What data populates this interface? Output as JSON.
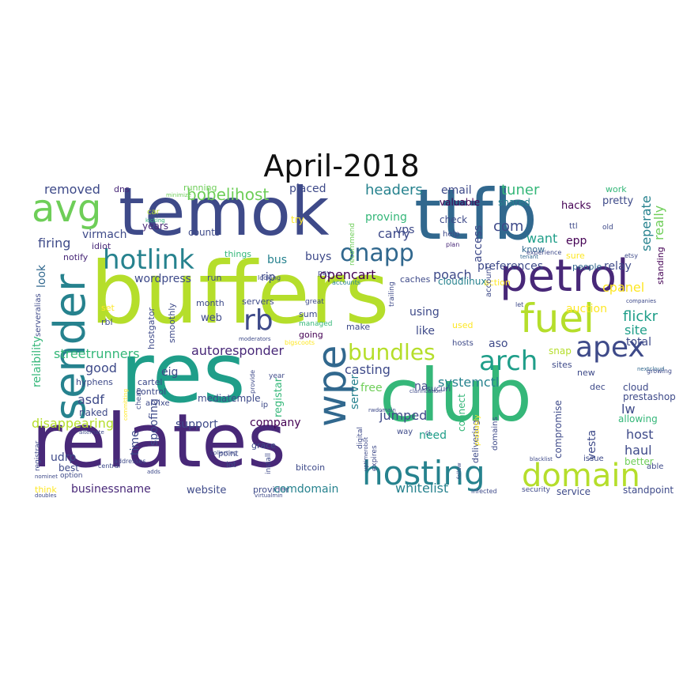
{
  "title": "April-2018",
  "palette": [
    "#440154",
    "#482878",
    "#3e4a89",
    "#31688e",
    "#26828e",
    "#1f9e89",
    "#35b779",
    "#6ece58",
    "#b5de2b",
    "#fde725"
  ],
  "words": [
    {
      "text": "buffers",
      "size": 108,
      "color": "#b5de2b"
    },
    {
      "text": "relates",
      "size": 94,
      "color": "#482878"
    },
    {
      "text": "club",
      "size": 92,
      "color": "#35b779"
    },
    {
      "text": "res",
      "size": 104,
      "color": "#1f9e89"
    },
    {
      "text": "ttfb",
      "size": 88,
      "color": "#31688e"
    },
    {
      "text": "temok",
      "size": 84,
      "color": "#3e4a89"
    },
    {
      "text": "petrol",
      "size": 56,
      "color": "#482878"
    },
    {
      "text": "sender",
      "size": 54,
      "color": "#26828e"
    },
    {
      "text": "fuel",
      "size": 50,
      "color": "#b5de2b"
    },
    {
      "text": "wpe",
      "size": 50,
      "color": "#31688e"
    },
    {
      "text": "hosting",
      "size": 42,
      "color": "#26828e"
    },
    {
      "text": "domain",
      "size": 40,
      "color": "#b5de2b"
    },
    {
      "text": "avg",
      "size": 48,
      "color": "#6ece58"
    },
    {
      "text": "hotlink",
      "size": 34,
      "color": "#26828e"
    },
    {
      "text": "apex",
      "size": 36,
      "color": "#3e4a89"
    },
    {
      "text": "arch",
      "size": 34,
      "color": "#1f9e89"
    },
    {
      "text": "rb",
      "size": 36,
      "color": "#3e4a89"
    },
    {
      "text": "onapp",
      "size": 30,
      "color": "#31688e"
    },
    {
      "text": "bundles",
      "size": 28,
      "color": "#b5de2b"
    },
    {
      "text": "bobelihost",
      "size": 20,
      "color": "#6ece58"
    },
    {
      "text": "removed",
      "size": 16,
      "color": "#3e4a89"
    },
    {
      "text": "dns",
      "size": 11,
      "color": "#482878"
    },
    {
      "text": "running",
      "size": 11,
      "color": "#6ece58"
    },
    {
      "text": "minimize",
      "size": 7,
      "color": "#6ece58"
    },
    {
      "text": "placed",
      "size": 14,
      "color": "#3e4a89"
    },
    {
      "text": "headers",
      "size": 18,
      "color": "#26828e"
    },
    {
      "text": "email",
      "size": 14,
      "color": "#3e4a89"
    },
    {
      "text": "valuable",
      "size": 12,
      "color": "#440154"
    },
    {
      "text": "tuner",
      "size": 18,
      "color": "#35b779"
    },
    {
      "text": "shared",
      "size": 12,
      "color": "#26828e"
    },
    {
      "text": "work",
      "size": 11,
      "color": "#35b779"
    },
    {
      "text": "pretty",
      "size": 13,
      "color": "#3e4a89"
    },
    {
      "text": "seperate",
      "size": 16,
      "color": "#26828e"
    },
    {
      "text": "really",
      "size": 16,
      "color": "#6ece58"
    },
    {
      "text": "hacks",
      "size": 13,
      "color": "#440154"
    },
    {
      "text": "car",
      "size": 10,
      "color": "#b5de2b"
    },
    {
      "text": "kicking",
      "size": 7,
      "color": "#35b779"
    },
    {
      "text": "years",
      "size": 12,
      "color": "#482878"
    },
    {
      "text": "virmach",
      "size": 14,
      "color": "#3e4a89"
    },
    {
      "text": "try",
      "size": 12,
      "color": "#fde725"
    },
    {
      "text": "recommend",
      "size": 9,
      "color": "#6ece58"
    },
    {
      "text": "proving",
      "size": 14,
      "color": "#35b779"
    },
    {
      "text": "vps",
      "size": 14,
      "color": "#3e4a89"
    },
    {
      "text": "check",
      "size": 12,
      "color": "#3e4a89"
    },
    {
      "text": "help",
      "size": 10,
      "color": "#3e4a89"
    },
    {
      "text": "plan",
      "size": 8,
      "color": "#482878"
    },
    {
      "text": "ttl",
      "size": 10,
      "color": "#3e4a89"
    },
    {
      "text": "old",
      "size": 9,
      "color": "#3e4a89"
    },
    {
      "text": "epp",
      "size": 14,
      "color": "#440154"
    },
    {
      "text": "counts",
      "size": 12,
      "color": "#3e4a89"
    },
    {
      "text": "carry",
      "size": 16,
      "color": "#3e4a89"
    },
    {
      "text": "com",
      "size": 18,
      "color": "#3e4a89"
    },
    {
      "text": "want",
      "size": 16,
      "color": "#1f9e89"
    },
    {
      "text": "access",
      "size": 14,
      "color": "#3e4a89"
    },
    {
      "text": "firing",
      "size": 16,
      "color": "#3e4a89"
    },
    {
      "text": "idiot",
      "size": 11,
      "color": "#482878"
    },
    {
      "text": "notify",
      "size": 11,
      "color": "#482878"
    },
    {
      "text": "things",
      "size": 11,
      "color": "#35b779"
    },
    {
      "text": "bus",
      "size": 14,
      "color": "#26828e"
    },
    {
      "text": "buys",
      "size": 14,
      "color": "#3e4a89"
    },
    {
      "text": "know",
      "size": 11,
      "color": "#31688e"
    },
    {
      "text": "tenant",
      "size": 7,
      "color": "#31688e"
    },
    {
      "text": "sure",
      "size": 11,
      "color": "#fde725"
    },
    {
      "text": "etsy",
      "size": 8,
      "color": "#3e4a89"
    },
    {
      "text": "look",
      "size": 14,
      "color": "#31688e"
    },
    {
      "text": "wordpress",
      "size": 14,
      "color": "#3e4a89"
    },
    {
      "text": "run",
      "size": 11,
      "color": "#3e4a89"
    },
    {
      "text": "rip",
      "size": 14,
      "color": "#3e4a89"
    },
    {
      "text": "opencart",
      "size": 16,
      "color": "#440154"
    },
    {
      "text": "poach",
      "size": 16,
      "color": "#3e4a89"
    },
    {
      "text": "preferences",
      "size": 14,
      "color": "#3e4a89"
    },
    {
      "text": "relay",
      "size": 14,
      "color": "#3e4a89"
    },
    {
      "text": "people",
      "size": 11,
      "color": "#31688e"
    },
    {
      "text": "standing",
      "size": 11,
      "color": "#440154"
    },
    {
      "text": "pay",
      "size": 9,
      "color": "#3e4a89"
    },
    {
      "text": "accounts",
      "size": 8,
      "color": "#26828e"
    },
    {
      "text": "caches",
      "size": 11,
      "color": "#3e4a89"
    },
    {
      "text": "cloudlinux",
      "size": 12,
      "color": "#26828e"
    },
    {
      "text": "cpanel",
      "size": 16,
      "color": "#fde725"
    },
    {
      "text": "month",
      "size": 11,
      "color": "#3e4a89"
    },
    {
      "text": "servers",
      "size": 11,
      "color": "#3e4a89"
    },
    {
      "text": "great",
      "size": 9,
      "color": "#3e4a89"
    },
    {
      "text": "managed",
      "size": 9,
      "color": "#35b779"
    },
    {
      "text": "trailing",
      "size": 9,
      "color": "#3e4a89"
    },
    {
      "text": "using",
      "size": 14,
      "color": "#3e4a89"
    },
    {
      "text": "let",
      "size": 8,
      "color": "#3e4a89"
    },
    {
      "text": "auction",
      "size": 14,
      "color": "#fde725"
    },
    {
      "text": "flickr",
      "size": 18,
      "color": "#1f9e89"
    },
    {
      "text": "set",
      "size": 11,
      "color": "#fde725"
    },
    {
      "text": "rbl",
      "size": 11,
      "color": "#3e4a89"
    },
    {
      "text": "serveralias",
      "size": 10,
      "color": "#3e4a89"
    },
    {
      "text": "hostgator",
      "size": 11,
      "color": "#3e4a89"
    },
    {
      "text": "smoothly",
      "size": 11,
      "color": "#3e4a89"
    },
    {
      "text": "web",
      "size": 13,
      "color": "#3e4a89"
    },
    {
      "text": "sum",
      "size": 11,
      "color": "#3e4a89"
    },
    {
      "text": "going",
      "size": 11,
      "color": "#440154"
    },
    {
      "text": "make",
      "size": 11,
      "color": "#3e4a89"
    },
    {
      "text": "used",
      "size": 11,
      "color": "#fde725"
    },
    {
      "text": "site",
      "size": 16,
      "color": "#1f9e89"
    },
    {
      "text": "total",
      "size": 14,
      "color": "#3e4a89"
    },
    {
      "text": "relaibility",
      "size": 14,
      "color": "#35b779"
    },
    {
      "text": "streetrunners",
      "size": 16,
      "color": "#35b779"
    },
    {
      "text": "eig",
      "size": 14,
      "color": "#3e4a89"
    },
    {
      "text": "autoresponder",
      "size": 16,
      "color": "#482878"
    },
    {
      "text": "moderators",
      "size": 7,
      "color": "#3e4a89"
    },
    {
      "text": "bigscoots",
      "size": 8,
      "color": "#fde725"
    },
    {
      "text": "hosts",
      "size": 10,
      "color": "#3e4a89"
    },
    {
      "text": "aso",
      "size": 14,
      "color": "#3e4a89"
    },
    {
      "text": "snap",
      "size": 12,
      "color": "#b5de2b"
    },
    {
      "text": "sites",
      "size": 11,
      "color": "#3e4a89"
    },
    {
      "text": "new",
      "size": 11,
      "color": "#3e4a89"
    },
    {
      "text": "nextcloud",
      "size": 7,
      "color": "#31688e"
    },
    {
      "text": "good",
      "size": 16,
      "color": "#3e4a89"
    },
    {
      "text": "registar",
      "size": 13,
      "color": "#35b779"
    },
    {
      "text": "casting",
      "size": 16,
      "color": "#3e4a89"
    },
    {
      "text": "systemctl",
      "size": 16,
      "color": "#26828e"
    },
    {
      "text": "sucuri",
      "size": 10,
      "color": "#3e4a89"
    },
    {
      "text": "dec",
      "size": 11,
      "color": "#3e4a89"
    },
    {
      "text": "cloud",
      "size": 12,
      "color": "#3e4a89"
    },
    {
      "text": "prestashop",
      "size": 12,
      "color": "#3e4a89"
    },
    {
      "text": "hyphens",
      "size": 11,
      "color": "#3e4a89"
    },
    {
      "text": "cartel",
      "size": 11,
      "color": "#3e4a89"
    },
    {
      "text": "control",
      "size": 11,
      "color": "#3e4a89"
    },
    {
      "text": "year",
      "size": 9,
      "color": "#3e4a89"
    },
    {
      "text": "provide",
      "size": 8,
      "color": "#3e4a89"
    },
    {
      "text": "free",
      "size": 14,
      "color": "#6ece58"
    },
    {
      "text": "clarification",
      "size": 7,
      "color": "#3e4a89"
    },
    {
      "text": "asdf",
      "size": 16,
      "color": "#3e4a89"
    },
    {
      "text": "naked",
      "size": 12,
      "color": "#3e4a89"
    },
    {
      "text": "committing",
      "size": 7,
      "color": "#fde725"
    },
    {
      "text": "cheap",
      "size": 9,
      "color": "#3e4a89"
    },
    {
      "text": "arvixe",
      "size": 10,
      "color": "#3e4a89"
    },
    {
      "text": "mediatemple",
      "size": 12,
      "color": "#3e4a89"
    },
    {
      "text": "ip",
      "size": 10,
      "color": "#3e4a89"
    },
    {
      "text": "server",
      "size": 14,
      "color": "#26828e"
    },
    {
      "text": "jumped",
      "size": 16,
      "color": "#3e4a89"
    },
    {
      "text": "na",
      "size": 14,
      "color": "#3e4a89"
    },
    {
      "text": "connect",
      "size": 12,
      "color": "#35b779"
    },
    {
      "text": "lw",
      "size": 16,
      "color": "#3e4a89"
    },
    {
      "text": "allowing",
      "size": 12,
      "color": "#35b779"
    },
    {
      "text": "disappearing",
      "size": 16,
      "color": "#b5de2b"
    },
    {
      "text": "spoofing",
      "size": 14,
      "color": "#3e4a89"
    },
    {
      "text": "support",
      "size": 14,
      "color": "#3e4a89"
    },
    {
      "text": "company",
      "size": 14,
      "color": "#440154"
    },
    {
      "text": "digital",
      "size": 9,
      "color": "#3e4a89"
    },
    {
      "text": "grace",
      "size": 11,
      "color": "#3e4a89"
    },
    {
      "text": "need",
      "size": 14,
      "color": "#1f9e89"
    },
    {
      "text": "delivering",
      "size": 11,
      "color": "#3e4a89"
    },
    {
      "text": "domains",
      "size": 10,
      "color": "#3e4a89"
    },
    {
      "text": "compromise",
      "size": 12,
      "color": "#3e4a89"
    },
    {
      "text": "vesta",
      "size": 14,
      "color": "#3e4a89"
    },
    {
      "text": "host",
      "size": 16,
      "color": "#3e4a89"
    },
    {
      "text": "alternate",
      "size": 7,
      "color": "#3e4a89"
    },
    {
      "text": "time",
      "size": 14,
      "color": "#3e4a89"
    },
    {
      "text": "collecting",
      "size": 7,
      "color": "#3e4a89"
    },
    {
      "text": "uptimerobot",
      "size": 7,
      "color": "#3e4a89"
    },
    {
      "text": "way",
      "size": 10,
      "color": "#3e4a89"
    },
    {
      "text": "probably",
      "size": 9,
      "color": "#fde725"
    },
    {
      "text": "haul",
      "size": 16,
      "color": "#3e4a89"
    },
    {
      "text": "udrp",
      "size": 14,
      "color": "#3e4a89"
    },
    {
      "text": "point",
      "size": 10,
      "color": "#3e4a89"
    },
    {
      "text": "install",
      "size": 9,
      "color": "#3e4a89"
    },
    {
      "text": "issue",
      "size": 10,
      "color": "#3e4a89"
    },
    {
      "text": "better",
      "size": 12,
      "color": "#6ece58"
    },
    {
      "text": "registrar",
      "size": 9,
      "color": "#3e4a89"
    },
    {
      "text": "central",
      "size": 8,
      "color": "#3e4a89"
    },
    {
      "text": "nominet",
      "size": 7,
      "color": "#3e4a89"
    },
    {
      "text": "adds",
      "size": 7,
      "color": "#3e4a89"
    },
    {
      "text": "best",
      "size": 12,
      "color": "#3e4a89"
    },
    {
      "text": "lot",
      "size": 10,
      "color": "#3e4a89"
    },
    {
      "text": "bitcoin",
      "size": 11,
      "color": "#3e4a89"
    },
    {
      "text": "expires",
      "size": 9,
      "color": "#3e4a89"
    },
    {
      "text": "blacklist",
      "size": 7,
      "color": "#3e4a89"
    },
    {
      "text": "able",
      "size": 10,
      "color": "#3e4a89"
    },
    {
      "text": "option",
      "size": 9,
      "color": "#3e4a89"
    },
    {
      "text": "think",
      "size": 11,
      "color": "#fde725"
    },
    {
      "text": "doubles",
      "size": 7,
      "color": "#3e4a89"
    },
    {
      "text": "businessname",
      "size": 14,
      "color": "#482878"
    },
    {
      "text": "website",
      "size": 13,
      "color": "#3e4a89"
    },
    {
      "text": "provider",
      "size": 11,
      "color": "#3e4a89"
    },
    {
      "text": "virtualmin",
      "size": 7,
      "color": "#3e4a89"
    },
    {
      "text": "comdomain",
      "size": 14,
      "color": "#26828e"
    },
    {
      "text": "whitelist",
      "size": 16,
      "color": "#26828e"
    },
    {
      "text": "infected",
      "size": 8,
      "color": "#3e4a89"
    },
    {
      "text": "security",
      "size": 9,
      "color": "#3e4a89"
    },
    {
      "text": "service",
      "size": 12,
      "color": "#3e4a89"
    },
    {
      "text": "standpoint",
      "size": 12,
      "color": "#3e4a89"
    },
    {
      "text": "like",
      "size": 14,
      "color": "#3e4a89"
    },
    {
      "text": "action",
      "size": 11,
      "color": "#fde725"
    },
    {
      "text": "account",
      "size": 10,
      "color": "#3e4a89"
    },
    {
      "text": "experience",
      "size": 8,
      "color": "#3e4a89"
    },
    {
      "text": "companies",
      "size": 7,
      "color": "#3e4a89"
    },
    {
      "text": "addresses",
      "size": 8,
      "color": "#3e4a89"
    },
    {
      "text": "looking",
      "size": 8,
      "color": "#3e4a89"
    },
    {
      "text": "rwdomain",
      "size": 7,
      "color": "#3e4a89"
    },
    {
      "text": "ci",
      "size": 8,
      "color": "#3e4a89"
    },
    {
      "text": "follow",
      "size": 7,
      "color": "#3e4a89"
    },
    {
      "text": "growing",
      "size": 8,
      "color": "#3e4a89"
    },
    {
      "text": "hostnexus",
      "size": 7,
      "color": "#fde725"
    }
  ]
}
